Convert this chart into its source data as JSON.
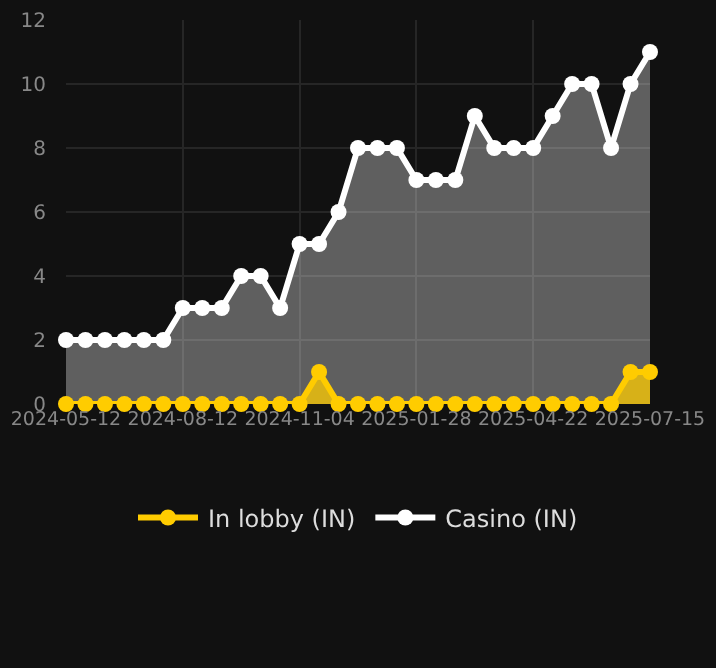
{
  "chart_data": {
    "type": "area",
    "categories": [
      "2024-05-12",
      null,
      null,
      null,
      null,
      null,
      "2024-08-12",
      null,
      null,
      null,
      null,
      null,
      "2024-11-04",
      null,
      null,
      null,
      null,
      null,
      "2025-01-28",
      null,
      null,
      null,
      null,
      null,
      "2025-04-22",
      null,
      null,
      null,
      null,
      null,
      "2025-07-15"
    ],
    "series": [
      {
        "name": "In lobby (IN)",
        "color": "#ffcc00",
        "values": [
          0,
          0,
          0,
          0,
          0,
          0,
          0,
          0,
          0,
          0,
          0,
          0,
          0,
          1,
          0,
          0,
          0,
          0,
          0,
          0,
          0,
          0,
          0,
          0,
          0,
          0,
          0,
          0,
          0,
          1,
          1
        ]
      },
      {
        "name": "Casino (IN)",
        "color": "#ffffff",
        "values": [
          2,
          2,
          2,
          2,
          2,
          2,
          3,
          3,
          3,
          4,
          4,
          3,
          5,
          5,
          6,
          8,
          8,
          8,
          7,
          7,
          7,
          9,
          8,
          8,
          8,
          9,
          10,
          10,
          8,
          10,
          11
        ]
      }
    ],
    "ylim": [
      0,
      12
    ],
    "yticks": [
      0,
      2,
      4,
      6,
      8,
      10,
      12
    ],
    "grid": true,
    "legend": "bottom",
    "marker": "circle",
    "line_style": "solid"
  }
}
